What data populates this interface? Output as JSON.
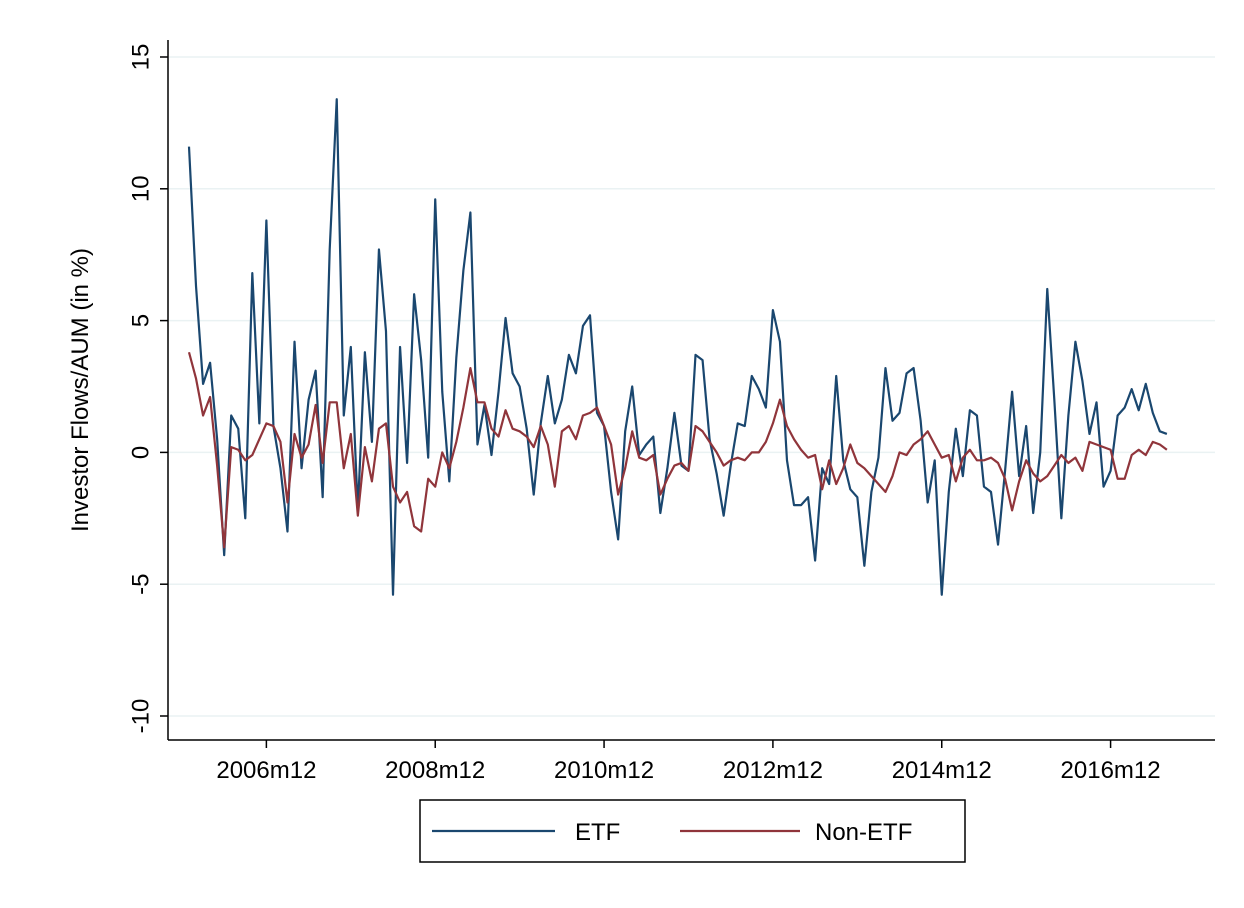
{
  "chart_data": {
    "type": "line",
    "y_label": "Investor Flows/AUM (in %)",
    "x": [
      "2006m1",
      "2006m2",
      "2006m3",
      "2006m4",
      "2006m5",
      "2006m6",
      "2006m7",
      "2006m8",
      "2006m9",
      "2006m10",
      "2006m11",
      "2006m12",
      "2007m1",
      "2007m2",
      "2007m3",
      "2007m4",
      "2007m5",
      "2007m6",
      "2007m7",
      "2007m8",
      "2007m9",
      "2007m10",
      "2007m11",
      "2007m12",
      "2008m1",
      "2008m2",
      "2008m3",
      "2008m4",
      "2008m5",
      "2008m6",
      "2008m7",
      "2008m8",
      "2008m9",
      "2008m10",
      "2008m11",
      "2008m12",
      "2009m1",
      "2009m2",
      "2009m3",
      "2009m4",
      "2009m5",
      "2009m6",
      "2009m7",
      "2009m8",
      "2009m9",
      "2009m10",
      "2009m11",
      "2009m12",
      "2010m1",
      "2010m2",
      "2010m3",
      "2010m4",
      "2010m5",
      "2010m6",
      "2010m7",
      "2010m8",
      "2010m9",
      "2010m10",
      "2010m11",
      "2010m12",
      "2011m1",
      "2011m2",
      "2011m3",
      "2011m4",
      "2011m5",
      "2011m6",
      "2011m7",
      "2011m8",
      "2011m9",
      "2011m10",
      "2011m11",
      "2011m12",
      "2012m1",
      "2012m2",
      "2012m3",
      "2012m4",
      "2012m5",
      "2012m6",
      "2012m7",
      "2012m8",
      "2012m9",
      "2012m10",
      "2012m11",
      "2012m12",
      "2013m1",
      "2013m2",
      "2013m3",
      "2013m4",
      "2013m5",
      "2013m6",
      "2013m7",
      "2013m8",
      "2013m9",
      "2013m10",
      "2013m11",
      "2013m12",
      "2014m1",
      "2014m2",
      "2014m3",
      "2014m4",
      "2014m5",
      "2014m6",
      "2014m7",
      "2014m8",
      "2014m9",
      "2014m10",
      "2014m11",
      "2014m12",
      "2015m1",
      "2015m2",
      "2015m3",
      "2015m4",
      "2015m5",
      "2015m6",
      "2015m7",
      "2015m8",
      "2015m9",
      "2015m10",
      "2015m11",
      "2015m12",
      "2016m1",
      "2016m2",
      "2016m3",
      "2016m4",
      "2016m5",
      "2016m6",
      "2016m7",
      "2016m8",
      "2016m9",
      "2016m10",
      "2016m11",
      "2016m12",
      "2017m1",
      "2017m2",
      "2017m3",
      "2017m4",
      "2017m5",
      "2017m6",
      "2017m7",
      "2017m8"
    ],
    "xticks": [
      "2006m12",
      "2008m12",
      "2010m12",
      "2012m12",
      "2014m12",
      "2016m12"
    ],
    "ylim": [
      -10,
      15
    ],
    "yticks": [
      -10,
      -5,
      0,
      5,
      10,
      15
    ],
    "grid": true,
    "series": [
      {
        "name": "ETF",
        "color": "#1a476f",
        "values": [
          11.6,
          6.3,
          2.6,
          3.4,
          0.5,
          -3.9,
          1.4,
          0.9,
          -2.5,
          6.8,
          1.1,
          8.8,
          1.0,
          -0.6,
          -3.0,
          4.2,
          -0.6,
          2.0,
          3.1,
          -1.7,
          7.7,
          13.4,
          1.4,
          4.0,
          -2.2,
          3.8,
          0.4,
          7.7,
          4.6,
          -5.4,
          4.0,
          -0.4,
          6.0,
          3.5,
          -0.2,
          9.6,
          2.3,
          -1.1,
          3.6,
          6.9,
          9.1,
          0.3,
          1.8,
          -0.1,
          2.3,
          5.1,
          3.0,
          2.5,
          0.9,
          -1.6,
          1.1,
          2.9,
          1.1,
          2.0,
          3.7,
          3.0,
          4.8,
          5.2,
          1.5,
          1.0,
          -1.5,
          -3.3,
          0.8,
          2.5,
          -0.1,
          0.3,
          0.6,
          -2.3,
          -0.6,
          1.5,
          -0.5,
          -0.7,
          3.7,
          3.5,
          0.5,
          -0.8,
          -2.4,
          -0.5,
          1.1,
          1.0,
          2.9,
          2.4,
          1.7,
          5.4,
          4.2,
          -0.3,
          -2.0,
          -2.0,
          -1.7,
          -4.1,
          -0.6,
          -1.2,
          2.9,
          -0.3,
          -1.4,
          -1.7,
          -4.3,
          -1.5,
          -0.2,
          3.2,
          1.2,
          1.5,
          3.0,
          3.2,
          1.2,
          -1.9,
          -0.3,
          -5.4,
          -1.5,
          0.9,
          -0.9,
          1.6,
          1.4,
          -1.3,
          -1.5,
          -3.5,
          -0.7,
          2.3,
          -0.9,
          1.0,
          -2.3,
          0.0,
          6.2,
          2.0,
          -2.5,
          1.4,
          4.2,
          2.7,
          0.7,
          1.9,
          -1.3,
          -0.7,
          1.4,
          1.7,
          2.4,
          1.6,
          2.6,
          1.5,
          0.8,
          0.7
        ]
      },
      {
        "name": "Non-ETF",
        "color": "#90353b",
        "values": [
          3.8,
          2.8,
          1.4,
          2.1,
          -0.5,
          -3.6,
          0.2,
          0.1,
          -0.3,
          -0.1,
          0.5,
          1.1,
          1.0,
          0.4,
          -1.9,
          0.7,
          -0.2,
          0.3,
          1.8,
          -0.4,
          1.9,
          1.9,
          -0.6,
          0.7,
          -2.4,
          0.2,
          -1.1,
          0.9,
          1.1,
          -1.3,
          -1.9,
          -1.5,
          -2.8,
          -3.0,
          -1.0,
          -1.3,
          0.0,
          -0.6,
          0.4,
          1.7,
          3.2,
          1.9,
          1.9,
          0.9,
          0.6,
          1.6,
          0.9,
          0.8,
          0.6,
          0.2,
          1.0,
          0.3,
          -1.3,
          0.8,
          1.0,
          0.5,
          1.4,
          1.5,
          1.7,
          1.0,
          0.3,
          -1.6,
          -0.6,
          0.8,
          -0.2,
          -0.3,
          -0.1,
          -1.6,
          -1.0,
          -0.5,
          -0.4,
          -0.7,
          1.0,
          0.8,
          0.4,
          0.0,
          -0.5,
          -0.3,
          -0.2,
          -0.3,
          0.0,
          0.0,
          0.4,
          1.1,
          2.0,
          1.0,
          0.5,
          0.1,
          -0.2,
          -0.1,
          -1.4,
          -0.3,
          -1.2,
          -0.6,
          0.3,
          -0.4,
          -0.6,
          -0.9,
          -1.2,
          -1.5,
          -0.9,
          0.0,
          -0.1,
          0.3,
          0.5,
          0.8,
          0.3,
          -0.2,
          -0.1,
          -1.1,
          -0.2,
          0.1,
          -0.3,
          -0.3,
          -0.2,
          -0.4,
          -1.0,
          -2.2,
          -1.1,
          -0.3,
          -0.8,
          -1.1,
          -0.9,
          -0.5,
          -0.1,
          -0.4,
          -0.2,
          -0.7,
          0.4,
          0.3,
          0.2,
          0.1,
          -1.0,
          -1.0,
          -0.1,
          0.1,
          -0.1,
          0.4,
          0.3,
          0.1
        ]
      }
    ]
  }
}
